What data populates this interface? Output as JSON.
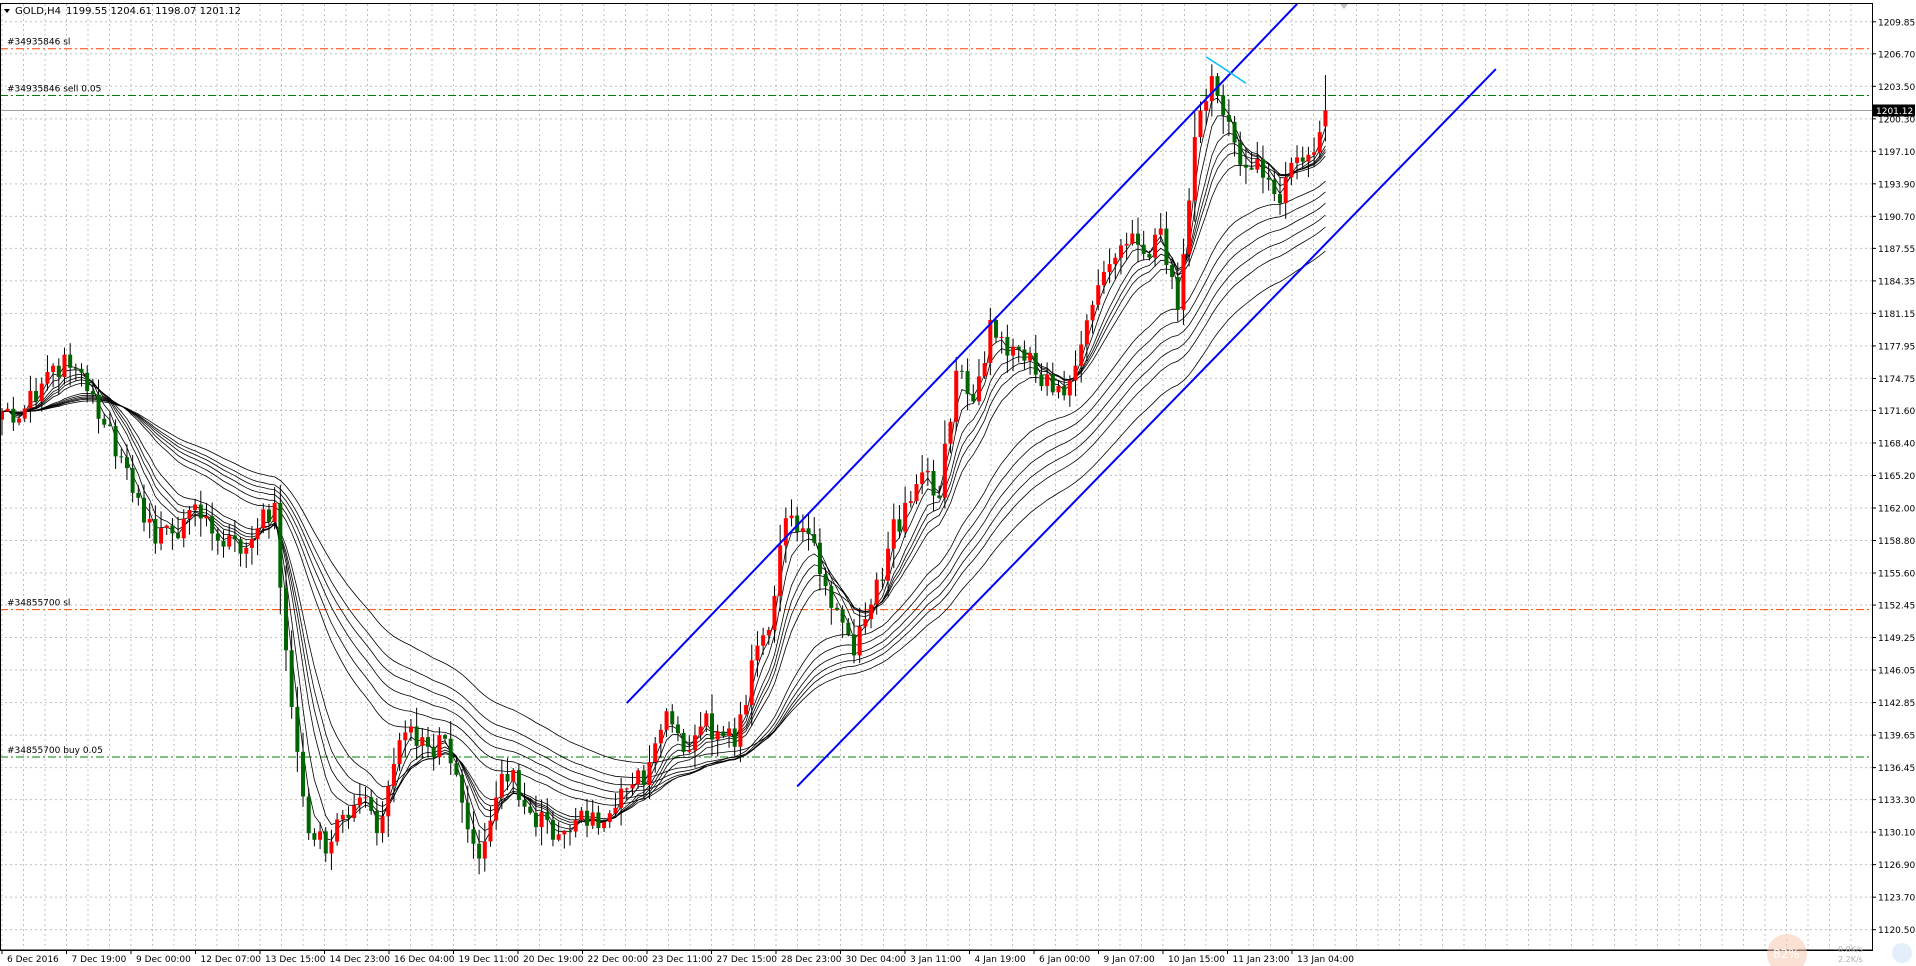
{
  "chart_header": {
    "symbol": "GOLD,H4",
    "ohlc": "1199.55 1204.61 1198.07 1201.12"
  },
  "colors": {
    "bull": "#ff0000",
    "bear": "#006400",
    "wick": "#000000",
    "grid": "#c0c0c0",
    "channel": "#0000ff",
    "sl_line": "#ff4500",
    "order_line": "#008000",
    "ma": "#000000",
    "price_tag_bg": "#000000",
    "cyan_mark": "#00bfff"
  },
  "chart_data": {
    "type": "candlestick",
    "timeframe": "H4",
    "y_range": [
      1118.5,
      1211.6
    ],
    "y_ticks": [
      1209.85,
      1206.7,
      1203.5,
      1200.3,
      1197.1,
      1193.9,
      1190.7,
      1187.55,
      1184.35,
      1181.15,
      1177.95,
      1174.75,
      1171.6,
      1168.4,
      1165.2,
      1162.0,
      1158.8,
      1155.6,
      1152.45,
      1149.25,
      1146.05,
      1142.85,
      1139.65,
      1136.45,
      1133.3,
      1130.1,
      1126.9,
      1123.7,
      1120.5
    ],
    "x_ticks": [
      "6 Dec 2016",
      "7 Dec 19:00",
      "9 Dec 00:00",
      "12 Dec 07:00",
      "13 Dec 15:00",
      "14 Dec 23:00",
      "16 Dec 04:00",
      "19 Dec 11:00",
      "20 Dec 19:00",
      "22 Dec 00:00",
      "23 Dec 11:00",
      "27 Dec 15:00",
      "28 Dec 23:00",
      "30 Dec 04:00",
      "3 Jan 11:00",
      "4 Jan 19:00",
      "6 Jan 00:00",
      "9 Jan 07:00",
      "10 Jan 15:00",
      "11 Jan 23:00",
      "13 Jan 04:00"
    ],
    "close_path": [
      [
        0,
        1171.5
      ],
      [
        3,
        1170.8
      ],
      [
        6,
        1172.5
      ],
      [
        9,
        1176.0
      ],
      [
        12,
        1175.8
      ],
      [
        15,
        1173.5
      ],
      [
        18,
        1170.2
      ],
      [
        21,
        1167.0
      ],
      [
        24,
        1163.0
      ],
      [
        27,
        1158.5
      ],
      [
        30,
        1159.5
      ],
      [
        33,
        1161.8
      ],
      [
        36,
        1161.2
      ],
      [
        39,
        1158.2
      ],
      [
        42,
        1157.5
      ],
      [
        45,
        1160.0
      ],
      [
        48,
        1162.5
      ],
      [
        50,
        1148.0
      ],
      [
        52,
        1138.0
      ],
      [
        54,
        1130.0
      ],
      [
        57,
        1128.0
      ],
      [
        60,
        1131.8
      ],
      [
        63,
        1133.5
      ],
      [
        66,
        1130.0
      ],
      [
        69,
        1136.8
      ],
      [
        72,
        1140.5
      ],
      [
        75,
        1138.5
      ],
      [
        78,
        1139.3
      ],
      [
        81,
        1133.0
      ],
      [
        84,
        1127.5
      ],
      [
        87,
        1133.5
      ],
      [
        90,
        1136.2
      ],
      [
        93,
        1132.0
      ],
      [
        96,
        1131.3
      ],
      [
        99,
        1130.2
      ],
      [
        102,
        1132.2
      ],
      [
        105,
        1130.5
      ],
      [
        108,
        1132.5
      ],
      [
        111,
        1134.8
      ],
      [
        114,
        1137.0
      ],
      [
        117,
        1142.0
      ],
      [
        120,
        1138.0
      ],
      [
        123,
        1140.5
      ],
      [
        126,
        1140.0
      ],
      [
        129,
        1138.5
      ],
      [
        132,
        1147.0
      ],
      [
        135,
        1150.0
      ],
      [
        138,
        1161.0
      ],
      [
        141,
        1160.0
      ],
      [
        144,
        1155.5
      ],
      [
        147,
        1152.0
      ],
      [
        150,
        1147.5
      ],
      [
        153,
        1152.5
      ],
      [
        156,
        1158.0
      ],
      [
        159,
        1162.5
      ],
      [
        162,
        1165.5
      ],
      [
        165,
        1163.0
      ],
      [
        168,
        1175.5
      ],
      [
        171,
        1172.5
      ],
      [
        174,
        1180.5
      ],
      [
        177,
        1177.0
      ],
      [
        180,
        1176.5
      ],
      [
        183,
        1174.0
      ],
      [
        186,
        1174.0
      ],
      [
        189,
        1176.0
      ],
      [
        192,
        1182.0
      ],
      [
        195,
        1186.0
      ],
      [
        198,
        1188.0
      ],
      [
        201,
        1187.0
      ],
      [
        204,
        1189.5
      ],
      [
        207,
        1181.5
      ],
      [
        210,
        1198.5
      ],
      [
        213,
        1204.5
      ],
      [
        216,
        1200.0
      ],
      [
        219,
        1195.5
      ],
      [
        222,
        1194.5
      ],
      [
        225,
        1192.0
      ],
      [
        228,
        1196.5
      ],
      [
        231,
        1197.0
      ],
      [
        233,
        1201.12
      ]
    ],
    "horizontal_levels": [
      {
        "label": "#34935846 sl",
        "price": 1207.2,
        "kind": "sl"
      },
      {
        "label": "#34935846 sell 0.05",
        "price": 1202.6,
        "kind": "order"
      },
      {
        "label": "#34855700 sl",
        "price": 1152.0,
        "kind": "sl"
      },
      {
        "label": "#34855700 buy 0.05",
        "price": 1137.5,
        "kind": "order"
      }
    ],
    "channel_lines": [
      {
        "from": [
          110,
          1142.8
        ],
        "to": [
          228,
          1211.6
        ]
      },
      {
        "from": [
          140,
          1134.6
        ],
        "to": [
          263,
          1205.2
        ]
      }
    ],
    "current_price": 1201.12,
    "current_price_label": "1201.12",
    "ma_periods": [
      3,
      5,
      8,
      10,
      12,
      15,
      30,
      35,
      40,
      45,
      50,
      60
    ]
  },
  "watermark": {
    "percent": "82%",
    "speed_up": "0.0K/s",
    "speed_down": "2.2K/s"
  }
}
